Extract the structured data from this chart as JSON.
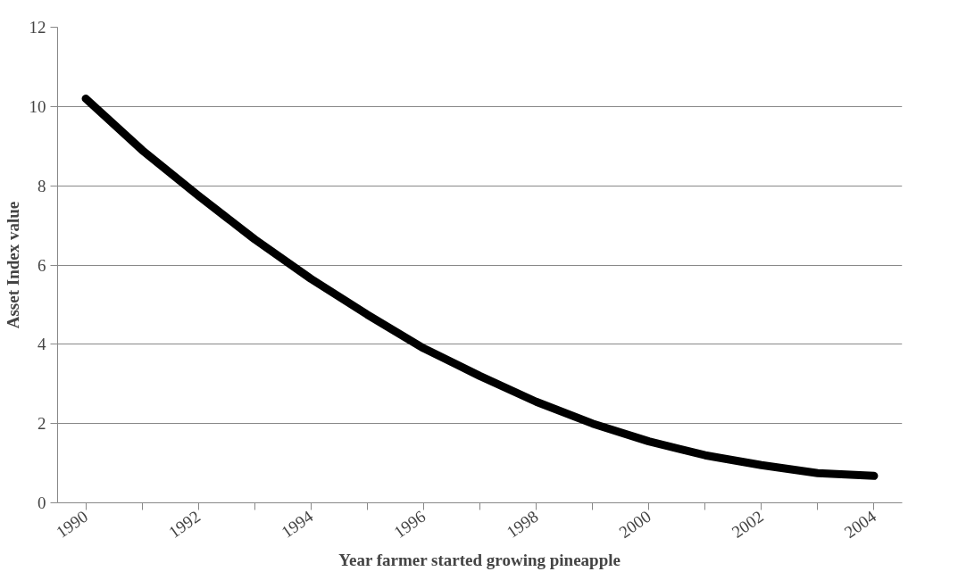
{
  "chart_data": {
    "type": "line",
    "xlabel": "Year farmer started growing pineapple",
    "ylabel": "Asset Index value",
    "categories": [
      "1990",
      null,
      "1992",
      null,
      "1994",
      null,
      "1996",
      null,
      "1998",
      null,
      "2000",
      null,
      "2002",
      null,
      "2004"
    ],
    "series": [
      {
        "color": "#000000",
        "values": [
          10.2,
          8.9,
          7.75,
          6.65,
          5.65,
          4.75,
          3.9,
          3.2,
          2.55,
          2.0,
          1.55,
          1.2,
          0.95,
          0.75,
          0.68
        ]
      }
    ],
    "ylim": [
      0,
      12
    ],
    "yticks": [
      0,
      2,
      4,
      6,
      8,
      10,
      12
    ],
    "grid": "y",
    "marker": "none",
    "line_style": "solid"
  }
}
